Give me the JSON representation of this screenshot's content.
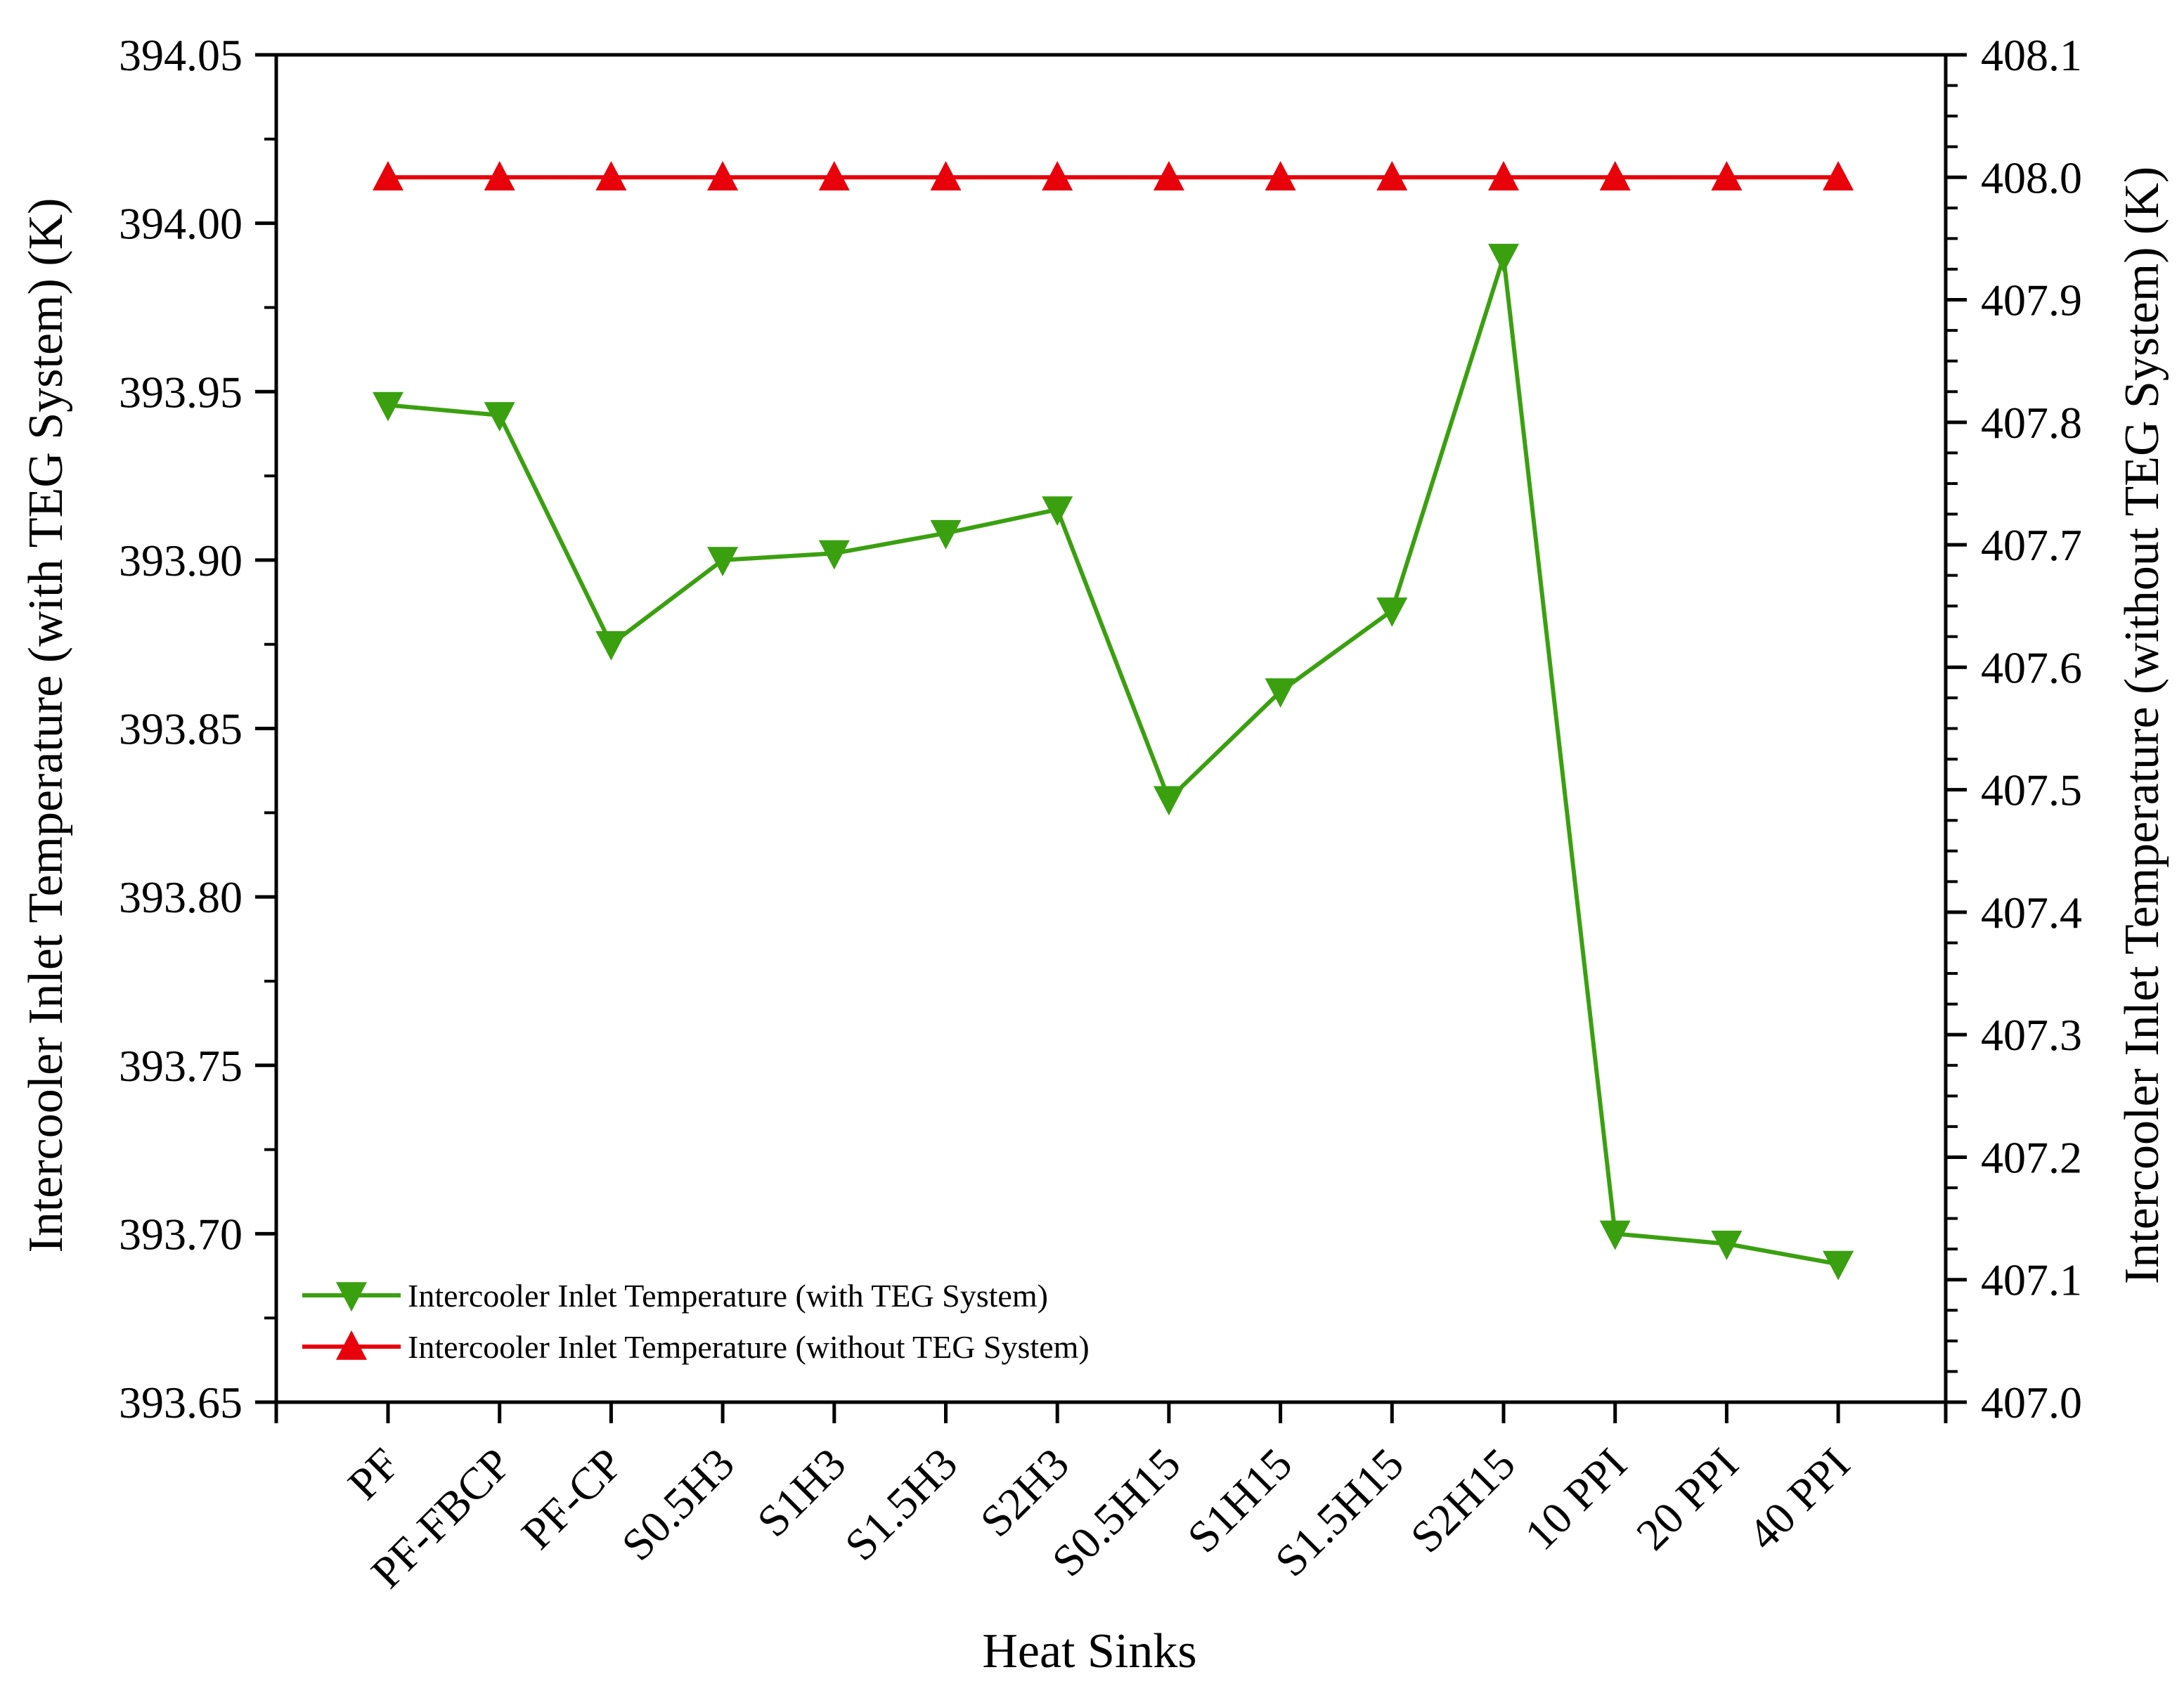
{
  "chart_data": {
    "type": "line",
    "xlabel": "Heat Sinks",
    "ylabel_left": "Intercooler Inlet Temperature (with TEG System) (K)",
    "ylabel_right": "Intercooler Inlet Temperature (without TEG System) (K)",
    "categories": [
      "PF",
      "PF-FBCP",
      "PF-CP",
      "S0.5H3",
      "S1H3",
      "S1.5H3",
      "S2H3",
      "S0.5H15",
      "S1H15",
      "S1.5H15",
      "S2H15",
      "10 PPI",
      "20 PPI",
      "40 PPI"
    ],
    "ylim_left": [
      393.65,
      394.05
    ],
    "ylim_right": [
      407.0,
      408.1
    ],
    "yticks_left": [
      "393.65",
      "393.70",
      "393.75",
      "393.80",
      "393.85",
      "393.90",
      "393.95",
      "394.00",
      "394.05"
    ],
    "yticks_right": [
      "407.0",
      "407.1",
      "407.2",
      "407.3",
      "407.4",
      "407.5",
      "407.6",
      "407.7",
      "407.8",
      "407.9",
      "408.0",
      "408.1"
    ],
    "grid": false,
    "legend_position": "bottom-left",
    "series": [
      {
        "name": "Intercooler Inlet Temperature (with TEG System)",
        "axis": "left",
        "color": "#3aa010",
        "marker": "triangle-down",
        "values": [
          393.946,
          393.943,
          393.875,
          393.9,
          393.902,
          393.908,
          393.915,
          393.829,
          393.861,
          393.885,
          393.99,
          393.7,
          393.697,
          393.691
        ]
      },
      {
        "name": "Intercooler Inlet Temperature (without TEG System)",
        "axis": "right",
        "color": "#e8000b",
        "marker": "triangle-up",
        "values": [
          408.0,
          408.0,
          408.0,
          408.0,
          408.0,
          408.0,
          408.0,
          408.0,
          408.0,
          408.0,
          408.0,
          408.0,
          408.0,
          408.0
        ]
      }
    ]
  }
}
